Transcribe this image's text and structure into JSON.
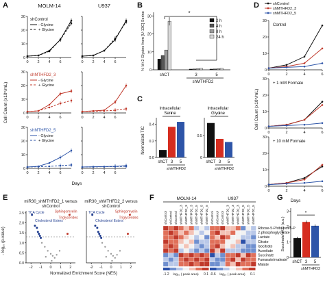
{
  "panels": {
    "A": {
      "letter": "A",
      "col_titles": [
        "MOLM-14",
        "U937"
      ],
      "rows": [
        {
          "label": "shControl",
          "color": "#111111",
          "legend": [
            "- Glycine",
            "+ Glycine"
          ],
          "left": {
            "minus": [
              1,
              1.5,
              5,
              13,
              27
            ],
            "plus": [
              1,
              1.5,
              4.5,
              13,
              25
            ]
          },
          "right": {
            "minus": [
              1,
              1.5,
              5,
              13,
              27
            ],
            "plus": [
              1,
              1.5,
              5,
              14,
              26
            ]
          }
        },
        {
          "label": "shMTHFD2_3",
          "color": "#c0392b",
          "legend": [
            "- Glycine",
            "+ Glycine"
          ],
          "left": {
            "minus": [
              1,
              1.5,
              6,
              14,
              16
            ],
            "plus": [
              1,
              1.5,
              4,
              7,
              9
            ]
          },
          "right": {
            "minus": [
              1,
              1.5,
              2,
              8,
              20
            ],
            "plus": [
              1,
              1.2,
              1.5,
              2,
              3
            ]
          }
        },
        {
          "label": "shMTHFD2_5",
          "color": "#2e55a8",
          "legend": [
            "- Glycine",
            "+ Glycine"
          ],
          "left": {
            "minus": [
              1,
              1.5,
              4,
              8,
              13
            ],
            "plus": [
              1,
              1.2,
              1.5,
              2,
              2.5
            ]
          },
          "right": {
            "minus": [
              1,
              1.2,
              1.3,
              1.5,
              2
            ],
            "plus": [
              1,
              1.1,
              1.2,
              1.3,
              1.5
            ]
          }
        }
      ],
      "x": [
        0,
        2,
        4,
        6,
        8
      ],
      "xticks": [
        "0",
        "2",
        "4",
        "6"
      ],
      "yticks": [
        "0",
        "10",
        "20",
        "30"
      ],
      "ylabel": "Cell Count (x10⁵/mL)",
      "xlabel": "Days"
    },
    "B": {
      "letter": "B",
      "ylabel": "% M+2 Glycine from [U-13C] Serine",
      "yticks": [
        "0",
        "10",
        "20",
        "30"
      ],
      "legend": [
        "2 h",
        "4 h",
        "8 h",
        "24 h"
      ],
      "legend_colors": [
        "#111111",
        "#555555",
        "#999999",
        "#d9d9d9"
      ],
      "groups": [
        "shCT",
        "3",
        "5"
      ],
      "group_caption": "shMTHFD2",
      "values": [
        [
          6,
          8,
          11,
          27
        ],
        [
          0.4,
          0.5,
          0.6,
          0.9
        ],
        [
          0.4,
          0.5,
          0.6,
          0.9
        ]
      ],
      "star": "*"
    },
    "C": {
      "letter": "C",
      "ylabel": "Normalized TIC",
      "subpanels": [
        {
          "title": [
            "Intracellular",
            "Serine"
          ],
          "yticks": [
            "0.0",
            "0.2",
            "0.4"
          ],
          "values": [
            0.09,
            0.37,
            0.43
          ]
        },
        {
          "title": [
            "Intracellular",
            "Glycine"
          ],
          "yticks": [
            "0",
            "0.5"
          ],
          "values": [
            0.78,
            0.42,
            0.35
          ]
        }
      ],
      "categories": [
        "shCT",
        "3",
        "5"
      ],
      "group_caption": "shMTHFD2",
      "colors": [
        "#111111",
        "#d62d20",
        "#2e55a8"
      ],
      "star": "*"
    },
    "D": {
      "letter": "D",
      "legend": [
        "shControl",
        "shMTHFD2_3",
        "shMTHFD2_5"
      ],
      "legend_colors": [
        "#111111",
        "#c0392b",
        "#2e55a8"
      ],
      "conditions": [
        "Control",
        "+ 1 mM Formate",
        "+ 10 mM Formate"
      ],
      "ylabel": "Cell Count (x10⁵/mL)",
      "xlabel": "Days",
      "xticks": [
        "0",
        "2",
        "4",
        "6"
      ],
      "yticks": [
        "0",
        "10",
        "20",
        "30"
      ],
      "x": [
        0,
        2,
        4,
        6
      ],
      "series": [
        {
          "ctrl": [
            1,
            3,
            8,
            27
          ],
          "ct": [
            1,
            2,
            4,
            13
          ],
          "c3": [
            1,
            1.5,
            2,
            4
          ]
        },
        {
          "ctrl": [
            1,
            2,
            5,
            16
          ],
          "ct": [
            1,
            2,
            5,
            14
          ],
          "c3": [
            1,
            1.5,
            2,
            3
          ]
        },
        {
          "ctrl": [
            1,
            2,
            5,
            12
          ],
          "ct": [
            1,
            2,
            4,
            13
          ],
          "c3": [
            1,
            1.5,
            2,
            3
          ]
        }
      ]
    },
    "E": {
      "letter": "E",
      "titles": [
        [
          "miR30_shMTHFD2_1 versus",
          "shControl"
        ],
        [
          "miR30_shMTHFD2_2 versus",
          "shControl"
        ]
      ],
      "labels_blue": [
        "TCA Cycle",
        "Cholesterol Esters"
      ],
      "labels_red": [
        "Sphingomyelin",
        "Triglycerides"
      ],
      "ylabel": "- log₁₀ (p-value)",
      "xlabel": "Normalized Enrichment Score (NES)",
      "yticks": [
        "0.0",
        "0.5",
        "1.0",
        "1.5",
        "2.0",
        "2.5"
      ],
      "xticks_left": [
        "-2",
        "-1",
        "0",
        "1",
        "2"
      ],
      "xticks_right": [
        "-2",
        "-1",
        "0",
        "1",
        "2"
      ]
    },
    "F": {
      "letter": "F",
      "cell_lines": [
        "MOLM-14",
        "U937"
      ],
      "columns": [
        "shControl",
        "shControl",
        "shControl",
        "shMTHFD2_3",
        "shMTHFD2_3",
        "shMTHFD2_3",
        "shMTHFD2_5",
        "shMTHFD2_5",
        "shMTHFD2_5"
      ],
      "metabolites": [
        "Ribose-5-P/ribulose5-P",
        "2-phosphoglycerate",
        "Lactate",
        "Citrate",
        "Isocitrate",
        "Aconitate",
        "Succinate",
        "Fumarate/maleate",
        "Malate"
      ],
      "scale_left": [
        "-1.2",
        "0.1"
      ],
      "scale_right": [
        "-0.6",
        "0.1"
      ],
      "scale_caption": "log₁₀ ( peak area)"
    },
    "G": {
      "letter": "G",
      "ylabel": "Succinate/αKG (a.u.)",
      "yticks": [
        "0",
        "1",
        "2",
        "3"
      ],
      "categories": [
        "shCT",
        "3",
        "5"
      ],
      "group_caption": "shMTHFD2",
      "values": [
        1.25,
        2.3,
        2.05
      ],
      "colors": [
        "#111111",
        "#d62d20",
        "#2e55a8"
      ],
      "star": "*"
    }
  }
}
